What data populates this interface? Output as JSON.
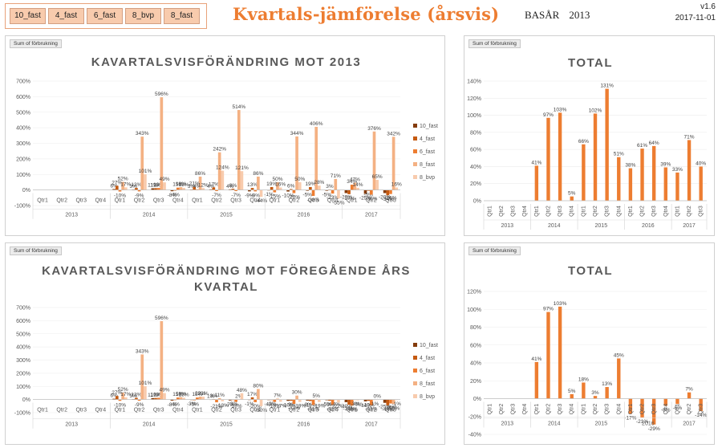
{
  "header": {
    "slicer_items": [
      "10_fast",
      "4_fast",
      "6_fast",
      "8_bvp",
      "8_fast"
    ],
    "title": "Kvartals-jämförelse (årsvis)",
    "basar_label": "BASÅR",
    "basar_year": "2013",
    "version": "v1.6",
    "date": "2017-11-01"
  },
  "chart_data": [
    {
      "id": "c1",
      "type": "bar",
      "field_button": "Sum of förbrukning",
      "title": [
        "KAVARTALSVISFÖRÄNDRING MOT 2013"
      ],
      "ylim": [
        -100,
        700
      ],
      "yticks": [
        -100,
        0,
        100,
        200,
        300,
        400,
        500,
        600,
        700
      ],
      "tick_suffix": "%",
      "groups": [
        {
          "year": "2013",
          "quarters": [
            "Qtr1",
            "Qtr2",
            "Qtr3",
            "Qtr4"
          ]
        },
        {
          "year": "2014",
          "quarters": [
            "Qtr1",
            "Qtr2",
            "Qtr3",
            "Qtr4"
          ]
        },
        {
          "year": "2015",
          "quarters": [
            "Qtr1",
            "Qtr2",
            "Qtr3",
            "Qtr4"
          ]
        },
        {
          "year": "2016",
          "quarters": [
            "Qtr1",
            "Qtr2",
            "Qtr3",
            "Qtr4"
          ]
        },
        {
          "year": "2017",
          "quarters": [
            "Qtr1",
            "Qtr2",
            "Qtr3"
          ]
        }
      ],
      "series": [
        {
          "name": "10_fast",
          "color": "#843c0c",
          "values": [
            0,
            0,
            0,
            0,
            6,
            3,
            11,
            -8,
            3,
            4,
            4,
            -9,
            -1,
            -10,
            -5,
            -5,
            -20,
            -25,
            -20
          ]
        },
        {
          "name": "4_fast",
          "color": "#c55a11",
          "values": [
            0,
            0,
            0,
            0,
            27,
            13,
            12,
            -4,
            21,
            17,
            8,
            13,
            19,
            6,
            19,
            3,
            -27,
            -5,
            -34
          ]
        },
        {
          "name": "6_fast",
          "color": "#ed7d31",
          "values": [
            0,
            0,
            0,
            0,
            -10,
            -9,
            13,
            15,
            4,
            -7,
            -7,
            -9,
            -15,
            -20,
            -38,
            -23,
            34,
            -30,
            -26
          ]
        },
        {
          "name": "8_fast",
          "color": "#f4b183",
          "values": [
            0,
            0,
            0,
            0,
            52,
            343,
            596,
            18,
            86,
            242,
            514,
            86,
            50,
            344,
            406,
            71,
            47,
            376,
            342
          ]
        },
        {
          "name": "8_bvp",
          "color": "#f8cbad",
          "values": [
            0,
            0,
            0,
            0,
            17,
            101,
            49,
            13,
            12,
            124,
            121,
            -44,
            16,
            50,
            28,
            -55,
            14,
            65,
            16
          ]
        }
      ]
    },
    {
      "id": "c2",
      "type": "bar",
      "field_button": "Sum of förbrukning",
      "title": [
        "TOTAL"
      ],
      "ylim": [
        0,
        140
      ],
      "yticks": [
        0,
        20,
        40,
        60,
        80,
        100,
        120,
        140
      ],
      "tick_suffix": "%",
      "groups": [
        {
          "year": "2013",
          "quarters": [
            "Qtr1",
            "Qtr2",
            "Qtr3",
            "Qtr4"
          ]
        },
        {
          "year": "2014",
          "quarters": [
            "Qtr1",
            "Qtr2",
            "Qtr3",
            "Qtr4"
          ]
        },
        {
          "year": "2015",
          "quarters": [
            "Qtr1",
            "Qtr2",
            "Qtr3",
            "Qtr4"
          ]
        },
        {
          "year": "2016",
          "quarters": [
            "Qtr1",
            "Qtr2",
            "Qtr3",
            "Qtr4"
          ]
        },
        {
          "year": "2017",
          "quarters": [
            "Qtr1",
            "Qtr2",
            "Qtr3"
          ]
        }
      ],
      "series": [
        {
          "color": "#ed7d31",
          "values": [
            0,
            0,
            0,
            0,
            41,
            97,
            103,
            5,
            66,
            102,
            131,
            51,
            38,
            61,
            64,
            39,
            33,
            71,
            40
          ],
          "labels": [
            "",
            "",
            "",
            "",
            "41%",
            "97%",
            "103%",
            "5%",
            "66%",
            "102%",
            "131%",
            "51%",
            "38%",
            "61%",
            "64%",
            "39%",
            "33%",
            "71%",
            "40%"
          ]
        }
      ]
    },
    {
      "id": "c3",
      "type": "bar",
      "field_button": "Sum of förbrukning",
      "title": [
        "KAVARTALSVISFÖRÄNDRING MOT FÖREGÅENDE ÅRS",
        "KVARTAL"
      ],
      "ylim": [
        -100,
        700
      ],
      "yticks": [
        -100,
        0,
        100,
        200,
        300,
        400,
        500,
        600,
        700
      ],
      "tick_suffix": "%",
      "groups": [
        {
          "year": "2013",
          "quarters": [
            "Qtr1",
            "Qtr2",
            "Qtr3",
            "Qtr4"
          ]
        },
        {
          "year": "2014",
          "quarters": [
            "Qtr1",
            "Qtr2",
            "Qtr3",
            "Qtr4"
          ]
        },
        {
          "year": "2015",
          "quarters": [
            "Qtr1",
            "Qtr2",
            "Qtr3",
            "Qtr4"
          ]
        },
        {
          "year": "2016",
          "quarters": [
            "Qtr1",
            "Qtr2",
            "Qtr3",
            "Qtr4"
          ]
        },
        {
          "year": "2017",
          "quarters": [
            "Qtr1",
            "Qtr2",
            "Qtr3"
          ]
        }
      ],
      "series": [
        {
          "name": "10_fast",
          "color": "#843c0c",
          "values": [
            0,
            0,
            0,
            0,
            6,
            3,
            11,
            -8,
            -3,
            1,
            -7,
            -1,
            -4,
            -10,
            -8,
            -5,
            -20,
            -14,
            -25
          ]
        },
        {
          "name": "4_fast",
          "color": "#c55a11",
          "values": [
            0,
            0,
            0,
            0,
            27,
            13,
            12,
            -4,
            -5,
            3,
            -3,
            17,
            -2,
            -9,
            -11,
            -9,
            -39,
            -10,
            -44
          ]
        },
        {
          "name": "6_fast",
          "color": "#ed7d31",
          "values": [
            0,
            0,
            0,
            0,
            -10,
            -9,
            13,
            15,
            15,
            -21,
            -18,
            -20,
            -18,
            -33,
            -41,
            -42,
            -46,
            -43,
            -30
          ]
        },
        {
          "name": "8_fast",
          "color": "#f4b183",
          "values": [
            0,
            0,
            0,
            0,
            52,
            343,
            596,
            18,
            22,
            11,
            2,
            80,
            7,
            30,
            5,
            -4,
            -3,
            -1,
            -35
          ]
        },
        {
          "name": "8_bvp",
          "color": "#f8cbad",
          "values": [
            0,
            0,
            0,
            0,
            17,
            101,
            49,
            13,
            21,
            -13,
            48,
            -50,
            -17,
            -19,
            -19,
            -22,
            -6,
            0,
            -1
          ]
        }
      ]
    },
    {
      "id": "c4",
      "type": "bar",
      "field_button": "Sum of förbrukning",
      "title": [
        "TOTAL"
      ],
      "ylim": [
        -40,
        120
      ],
      "yticks": [
        -40,
        -20,
        0,
        20,
        40,
        60,
        80,
        100,
        120
      ],
      "tick_suffix": "%",
      "groups": [
        {
          "year": "2013",
          "quarters": [
            "Qtr1",
            "Qtr2",
            "Qtr3",
            "Qtr4"
          ]
        },
        {
          "year": "2014",
          "quarters": [
            "Qtr1",
            "Qtr2",
            "Qtr3",
            "Qtr4"
          ]
        },
        {
          "year": "2015",
          "quarters": [
            "Qtr1",
            "Qtr2",
            "Qtr3",
            "Qtr4"
          ]
        },
        {
          "year": "2016",
          "quarters": [
            "Qtr1",
            "Qtr2",
            "Qtr3",
            "Qtr4"
          ]
        },
        {
          "year": "2017",
          "quarters": [
            "Qtr1",
            "Qtr2",
            "Qtr3"
          ]
        }
      ],
      "series": [
        {
          "color": "#ed7d31",
          "values": [
            0,
            0,
            0,
            0,
            41,
            97,
            103,
            5,
            18,
            3,
            13,
            45,
            -17,
            -21,
            -29,
            -8,
            -6,
            7,
            -14
          ],
          "labels": [
            "",
            "",
            "",
            "",
            "41%",
            "97%",
            "103%",
            "5%",
            "18%",
            "3%",
            "13%",
            "45%",
            "-17%",
            "-21%",
            "-29%",
            "-8%",
            "-6%",
            "7%",
            "-14%"
          ]
        }
      ]
    }
  ]
}
